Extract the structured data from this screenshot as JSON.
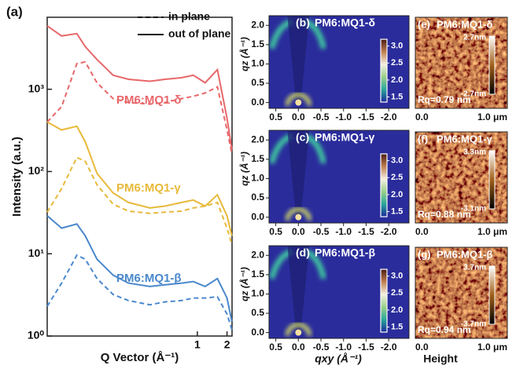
{
  "chart_data": {
    "type": "line",
    "panel_label": "(a)",
    "xlabel": "Q Vector (Å⁻¹)",
    "ylabel": "Intensity (a.u.)",
    "xscale": "log",
    "yscale": "log",
    "xlim": [
      0.03,
      2.25
    ],
    "xticks": [
      1,
      2
    ],
    "ylim": [
      1,
      7500
    ],
    "yticks": [
      {
        "value": 1,
        "label": "10⁰"
      },
      {
        "value": 10,
        "label": "10¹"
      },
      {
        "value": 100,
        "label": "10²"
      },
      {
        "value": 1000,
        "label": "10³"
      }
    ],
    "legend": [
      {
        "label": "in plane",
        "style": "dashed"
      },
      {
        "label": "out of plane",
        "style": "solid"
      }
    ],
    "x": [
      0.03,
      0.042,
      0.06,
      0.073,
      0.096,
      0.14,
      0.2,
      0.33,
      0.47,
      0.69,
      0.91,
      1.2,
      1.6,
      2.0,
      2.24
    ],
    "series": [
      {
        "name": "PM6:MQ1-δ",
        "color": "#e8676a",
        "out_of_plane": [
          5900,
          4450,
          4750,
          3300,
          2300,
          1480,
          1320,
          1250,
          1320,
          1380,
          1480,
          1200,
          1730,
          445,
          185
        ],
        "in_plane": [
          400,
          615,
          2050,
          2150,
          1200,
          770,
          690,
          660,
          690,
          770,
          820,
          900,
          1070,
          320,
          165
        ]
      },
      {
        "name": "PM6:MQ1-γ",
        "color": "#e8b93a",
        "out_of_plane": [
          400,
          320,
          355,
          230,
          95,
          55,
          42,
          36,
          38,
          42,
          45,
          38,
          52,
          29,
          16.5
        ],
        "in_plane": [
          32,
          62,
          148,
          133,
          69,
          40,
          33,
          31,
          32,
          33,
          36,
          38,
          42,
          20.5,
          13
        ]
      },
      {
        "name": "PM6:MQ1-β",
        "color": "#4a88cc",
        "out_of_plane": [
          29,
          20.5,
          23,
          16.5,
          8.6,
          5.5,
          4.4,
          4.0,
          4.2,
          4.4,
          4.6,
          4.0,
          5.0,
          2.9,
          1.5
        ],
        "in_plane": [
          2.3,
          4.4,
          9.6,
          8.6,
          5.0,
          3.2,
          2.7,
          2.4,
          2.6,
          2.7,
          2.9,
          2.9,
          3.0,
          1.85,
          1.2
        ]
      }
    ]
  },
  "giwaxs": {
    "xlabel": "qxy (Å⁻¹)",
    "ylabel": "qz (Å⁻¹)",
    "xlim": [
      0.65,
      -2.45
    ],
    "xticks": [
      0.5,
      {
        "value": 0,
        "label": "0.0"
      },
      -0.5,
      {
        "value": -1,
        "label": "-1.0"
      },
      -1.5,
      {
        "value": -2,
        "label": "-2.0"
      }
    ],
    "ylim": [
      -0.15,
      2.25
    ],
    "yticks": [
      {
        "value": 0,
        "label": "0.0"
      },
      0.5,
      {
        "value": 1,
        "label": "1.0"
      },
      1.5,
      {
        "value": 2,
        "label": "2.0"
      }
    ],
    "clim": [
      1.35,
      3.2
    ],
    "cticks": [
      1.5,
      {
        "value": 2,
        "label": "2.0"
      },
      2.5,
      {
        "value": 3,
        "label": "3.0"
      }
    ],
    "panels": [
      {
        "label": "(b)",
        "title": "PM6:MQ1-δ"
      },
      {
        "label": "(c)",
        "title": "PM6:MQ1-γ"
      },
      {
        "label": "(d)",
        "title": "PM6:MQ1-β"
      }
    ]
  },
  "afm": {
    "x_start": "0.0",
    "x_end": "1.0 μm",
    "colorbar_label": "Height",
    "panels": [
      {
        "label": "(e)",
        "title": "PM6:MQ1-δ",
        "scale_max": "2.7nm",
        "scale_min": "-2.7nm",
        "rq": "Rq=0.79 nm"
      },
      {
        "label": "(f)",
        "title": "PM6:MQ1-γ",
        "scale_max": "3.3nm",
        "scale_min": "-3.1nm",
        "rq": "Rq=0.88 nm"
      },
      {
        "label": "(g)",
        "title": "PM6:MQ1-β",
        "scale_max": "3.7nm",
        "scale_min": "-3.7nm",
        "rq": "Rq=0.94 nm"
      }
    ]
  }
}
